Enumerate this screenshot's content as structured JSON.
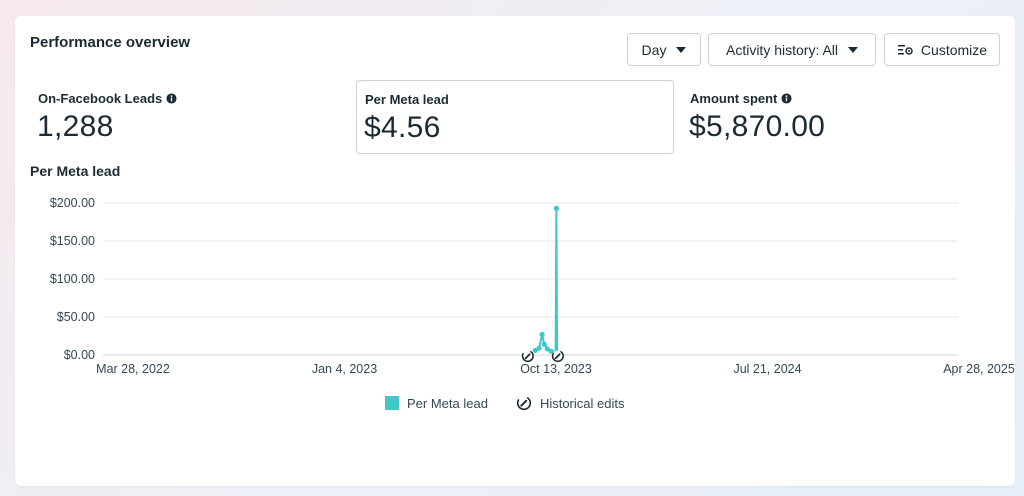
{
  "header": {
    "title": "Performance overview",
    "day_label": "Day",
    "activity_label": "Activity history: All",
    "customize_label": "Customize"
  },
  "metrics": [
    {
      "label": "On-Facebook Leads",
      "value": "1,288",
      "has_info": true,
      "selected": false
    },
    {
      "label": "Per Meta lead",
      "value": "$4.56",
      "has_info": false,
      "selected": true
    },
    {
      "label": "Amount spent",
      "value": "$5,870.00",
      "has_info": true,
      "selected": false
    }
  ],
  "chart_section": {
    "title": "Per Meta lead"
  },
  "legend": {
    "series_label": "Per Meta lead",
    "edits_label": "Historical edits"
  },
  "colors": {
    "series": "#3ec8c8",
    "text": "#1c2b33",
    "grid": "#e4e6eb"
  },
  "chart_data": {
    "type": "line",
    "title": "Per Meta lead",
    "x_ticks": [
      "Mar 28, 2022",
      "Jan 4, 2023",
      "Oct 13, 2023",
      "Jul 21, 2024",
      "Apr 28, 2025"
    ],
    "y_ticks": [
      "$0.00",
      "$50.00",
      "$100.00",
      "$150.00",
      "$200.00"
    ],
    "xlim": [
      "2022-03-28",
      "2025-04-28"
    ],
    "ylim": [
      0,
      200
    ],
    "series": [
      {
        "name": "Per Meta lead",
        "points": [
          {
            "x": "2023-09-15",
            "y": 6
          },
          {
            "x": "2023-09-20",
            "y": 9
          },
          {
            "x": "2023-09-24",
            "y": 27
          },
          {
            "x": "2023-09-27",
            "y": 14
          },
          {
            "x": "2023-10-01",
            "y": 8
          },
          {
            "x": "2023-10-06",
            "y": 5
          },
          {
            "x": "2023-10-12",
            "y": 2
          },
          {
            "x": "2023-10-13",
            "y": 193
          },
          {
            "x": "2023-10-14",
            "y": 3
          }
        ]
      }
    ],
    "historical_edits": [
      "2023-09-05",
      "2023-10-15"
    ],
    "grid": true,
    "legend_position": "bottom"
  }
}
